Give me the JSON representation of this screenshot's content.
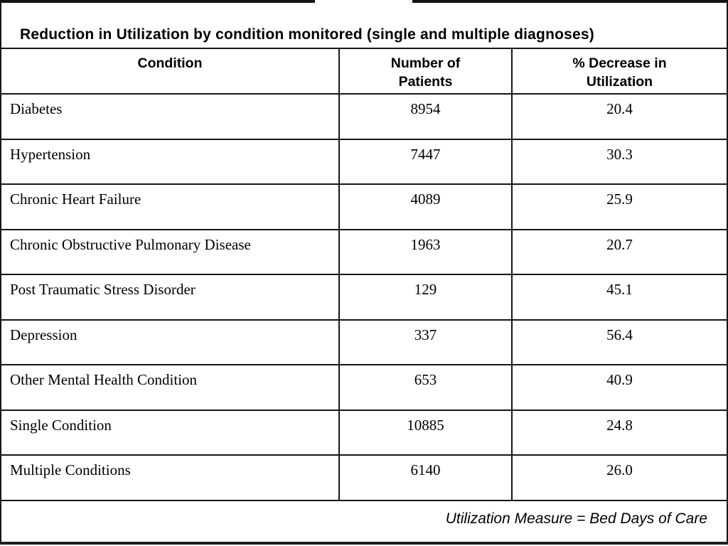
{
  "slide": {
    "title": "Reduction in Utilization by condition monitored (single and multiple diagnoses)",
    "footer_note": "Utilization Measure = Bed Days of Care"
  },
  "table": {
    "columns": [
      {
        "label": "Condition"
      },
      {
        "label": "Number of\nPatients"
      },
      {
        "label": "% Decrease in\nUtilization"
      }
    ],
    "rows": [
      {
        "condition": "Diabetes",
        "patients": "8954",
        "decrease": "20.4"
      },
      {
        "condition": "Hypertension",
        "patients": "7447",
        "decrease": "30.3"
      },
      {
        "condition": "Chronic Heart Failure",
        "patients": "4089",
        "decrease": "25.9"
      },
      {
        "condition": "Chronic Obstructive Pulmonary Disease",
        "patients": "1963",
        "decrease": "20.7"
      },
      {
        "condition": "Post Traumatic Stress Disorder",
        "patients": "129",
        "decrease": "45.1"
      },
      {
        "condition": "Depression",
        "patients": "337",
        "decrease": "56.4"
      },
      {
        "condition": "Other Mental Health Condition",
        "patients": "653",
        "decrease": "40.9"
      },
      {
        "condition": "Single Condition",
        "patients": "10885",
        "decrease": "24.8"
      },
      {
        "condition": "Multiple Conditions",
        "patients": "6140",
        "decrease": "26.0"
      }
    ]
  },
  "colors": {
    "line": "#161616",
    "text": "#000000",
    "background": "#ffffff",
    "top_rule": "#141414",
    "bottom_rule": "#1e1e1e"
  }
}
